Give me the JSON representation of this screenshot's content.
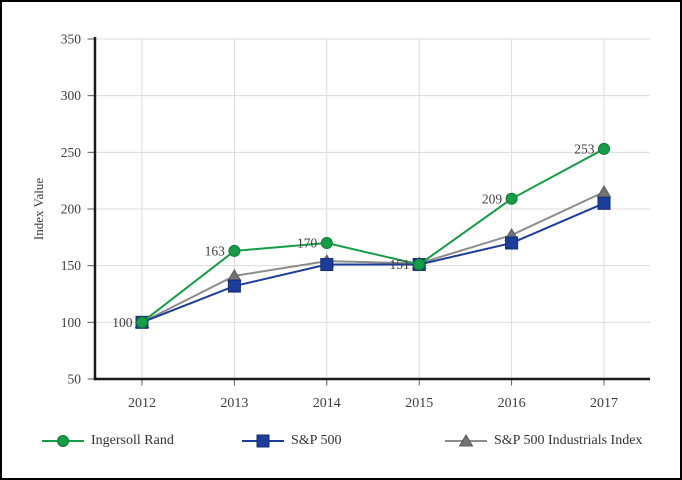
{
  "chart_data": {
    "type": "line",
    "title": "",
    "ylabel": "Index Value",
    "categories": [
      "2012",
      "2013",
      "2014",
      "2015",
      "2016",
      "2017"
    ],
    "ylim": [
      50,
      350
    ],
    "yticks": [
      50,
      100,
      150,
      200,
      250,
      300,
      350
    ],
    "grid": true,
    "legend_position": "bottom",
    "series": [
      {
        "name": "Ingersoll Rand",
        "marker": "circle",
        "color": "#169c46",
        "marker_edge": "#0d7a33",
        "values": [
          100,
          163,
          170,
          151,
          209,
          253
        ],
        "point_labels": [
          "100",
          "163",
          "170",
          "151",
          "209",
          "253"
        ]
      },
      {
        "name": "S&P 500",
        "marker": "square",
        "color": "#1c3d99",
        "marker_edge": "#142c73",
        "values": [
          100,
          132,
          151,
          151,
          170,
          205
        ]
      },
      {
        "name": "S&P 500 Industrials Index",
        "marker": "triangle",
        "color": "#8c8c8c",
        "marker_fill": "#737373",
        "marker_edge": "#5a5a5a",
        "values": [
          100,
          141,
          154,
          152,
          177,
          215
        ]
      }
    ],
    "colors": {
      "grid": "#dcdcdc",
      "axis": "#1a1a1a",
      "tick": "#595959",
      "text": "#3d3d3d"
    }
  }
}
